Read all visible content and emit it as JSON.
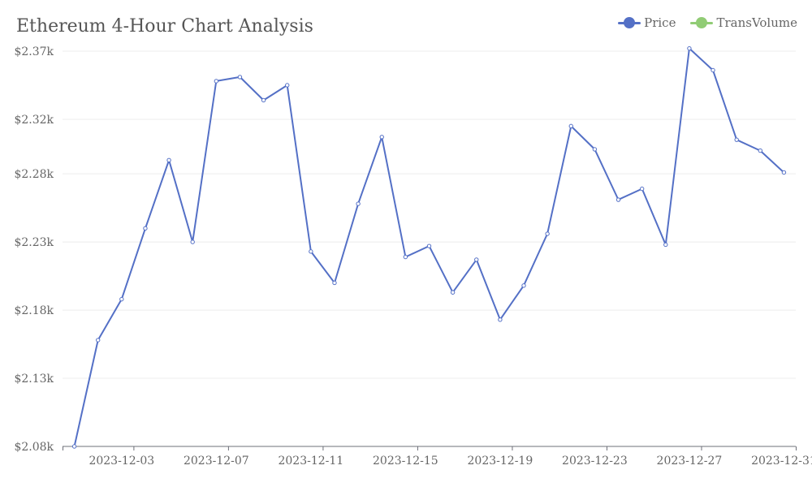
{
  "chart_data": {
    "type": "line",
    "title": "Ethereum 4-Hour Chart Analysis",
    "xlabel": "",
    "ylabel": "",
    "grid": true,
    "legend_position": "top-right",
    "legend": [
      {
        "name": "Price",
        "color": "#5470c6"
      },
      {
        "name": "TransVolume",
        "color": "#91cc75"
      }
    ],
    "ylim": [
      2080,
      2370
    ],
    "y_ticks": [
      2080,
      2130,
      2180,
      2230,
      2280,
      2320,
      2370
    ],
    "y_tick_labels": [
      "$2.08k",
      "$2.13k",
      "$2.18k",
      "$2.23k",
      "$2.28k",
      "$2.32k",
      "$2.37k"
    ],
    "x_tick_labels": [
      "2023-12-03",
      "2023-12-07",
      "2023-12-11",
      "2023-12-15",
      "2023-12-19",
      "2023-12-23",
      "2023-12-27",
      "2023-12-31"
    ],
    "x": [
      "2023-12-01",
      "2023-12-02",
      "2023-12-03",
      "2023-12-04",
      "2023-12-05",
      "2023-12-06",
      "2023-12-07",
      "2023-12-08",
      "2023-12-09",
      "2023-12-10",
      "2023-12-11",
      "2023-12-12",
      "2023-12-13",
      "2023-12-14",
      "2023-12-15",
      "2023-12-16",
      "2023-12-17",
      "2023-12-18",
      "2023-12-19",
      "2023-12-20",
      "2023-12-21",
      "2023-12-22",
      "2023-12-23",
      "2023-12-24",
      "2023-12-25",
      "2023-12-26",
      "2023-12-27",
      "2023-12-28",
      "2023-12-29",
      "2023-12-30",
      "2023-12-31"
    ],
    "series": [
      {
        "name": "Price",
        "color": "#5470c6",
        "values": [
          2080,
          2158,
          2188,
          2240,
          2290,
          2230,
          2348,
          2351,
          2334,
          2345,
          2223,
          2200,
          2258,
          2307,
          2219,
          2227,
          2193,
          2217,
          2173,
          2198,
          2236,
          2315,
          2298,
          2261,
          2269,
          2228,
          2372,
          2356,
          2305,
          2297,
          2281
        ]
      }
    ]
  }
}
